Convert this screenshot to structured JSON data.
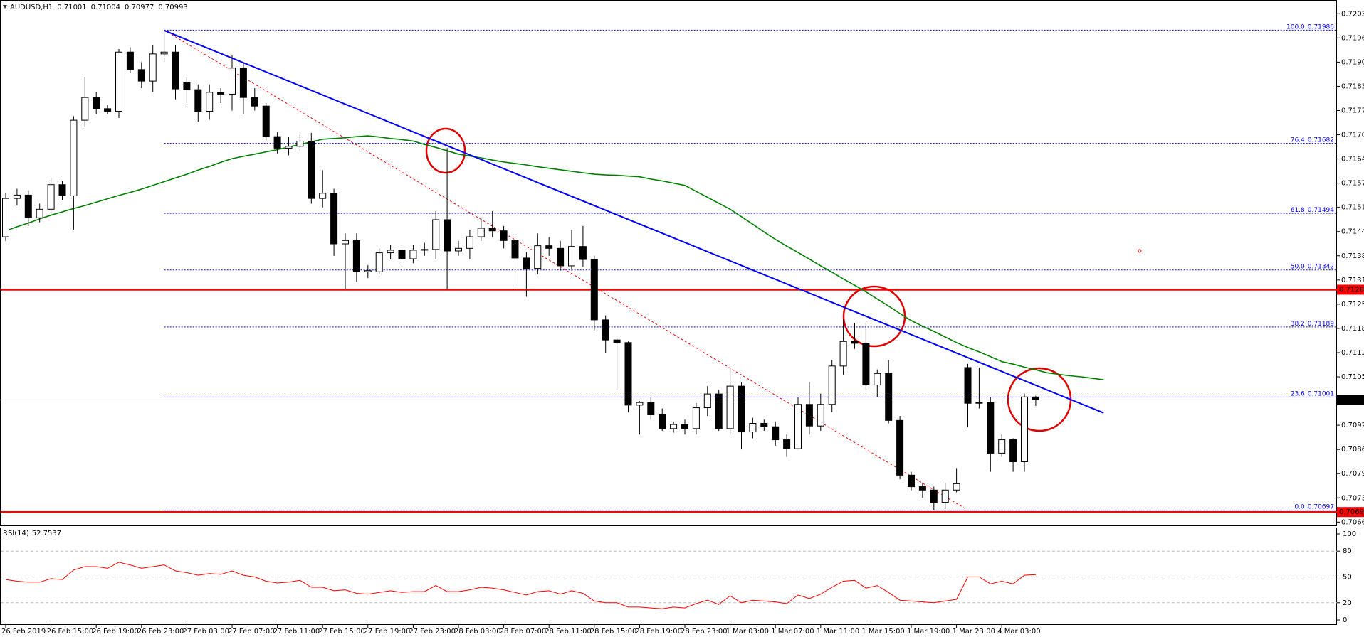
{
  "chart_data": {
    "type": "candlestick",
    "title": "AUDUSD,H1",
    "categories": [
      "26 Feb 2019",
      null,
      null,
      null,
      "26 Feb 15:00",
      null,
      null,
      null,
      "26 Feb 19:00",
      null,
      null,
      null,
      "26 Feb 23:00",
      null,
      null,
      null,
      "27 Feb 03:00",
      null,
      null,
      null,
      "27 Feb 07:00",
      null,
      null,
      null,
      "27 Feb 11:00",
      null,
      null,
      null,
      "27 Feb 15:00",
      null,
      null,
      null,
      "27 Feb 19:00",
      null,
      null,
      null,
      "27 Feb 23:00",
      null,
      null,
      null,
      "28 Feb 03:00",
      null,
      null,
      null,
      "28 Feb 07:00",
      null,
      null,
      null,
      "28 Feb 11:00",
      null,
      null,
      null,
      "28 Feb 15:00",
      null,
      null,
      null,
      "28 Feb 19:00",
      null,
      null,
      null,
      "28 Feb 23:00",
      null,
      null,
      null,
      "1 Mar 03:00",
      null,
      null,
      null,
      "1 Mar 07:00",
      null,
      null,
      null,
      "1 Mar 11:00",
      null,
      null,
      null,
      "1 Mar 15:00",
      null,
      null,
      null,
      "1 Mar 19:00",
      null,
      null,
      null,
      "1 Mar 23:00",
      null,
      null,
      null,
      "4 Mar 03:00",
      null,
      null,
      null
    ],
    "open": [
      0.71431,
      0.71534,
      0.71543,
      0.71482,
      0.71505,
      0.71571,
      0.71541,
      0.71744,
      0.71805,
      0.71775,
      0.71768,
      0.71927,
      0.7188,
      0.71849,
      0.71922,
      0.71927,
      0.71845,
      0.71826,
      0.71768,
      0.71819,
      0.71814,
      0.71884,
      0.71805,
      0.71782,
      0.717,
      0.71669,
      0.71674,
      0.71688,
      0.71534,
      0.71548,
      0.71412,
      0.71421,
      0.71337,
      0.71337,
      0.71388,
      0.71395,
      0.71372,
      0.71395,
      0.71397,
      0.71477,
      0.71393,
      0.714,
      0.71431,
      0.71454,
      0.71447,
      0.71421,
      0.71374,
      0.71346,
      0.71407,
      0.714,
      0.71353,
      0.71405,
      0.7137,
      0.71208,
      0.71154,
      0.71147,
      0.70979,
      0.70986,
      0.70953,
      0.70916,
      0.70927,
      0.70916,
      0.70972,
      0.71009,
      0.70916,
      0.7103,
      0.70907,
      0.7093,
      0.70921,
      0.70886,
      0.70862,
      0.70981,
      0.70923,
      0.70981,
      0.71084,
      0.7115,
      0.71145,
      0.71033,
      0.71064,
      0.70938,
      0.70791,
      0.7076,
      0.70751,
      0.70718,
      0.70751,
      0.7108,
      0.70984,
      0.70986,
      0.7085,
      0.70886,
      0.70827,
      0.71001
    ],
    "high": [
      0.71548,
      0.7156,
      0.71556,
      0.7152,
      0.7159,
      0.7158,
      0.71755,
      0.7186,
      0.7182,
      0.71785,
      0.71935,
      0.7194,
      0.719,
      0.71945,
      0.71985,
      0.71945,
      0.7186,
      0.7184,
      0.7184,
      0.7183,
      0.7192,
      0.719,
      0.7183,
      0.7179,
      0.71712,
      0.717,
      0.71705,
      0.7171,
      0.7161,
      0.7156,
      0.7144,
      0.7144,
      0.71355,
      0.714,
      0.7141,
      0.71405,
      0.7141,
      0.71415,
      0.715,
      0.71669,
      0.7142,
      0.7145,
      0.7148,
      0.715,
      0.7146,
      0.7143,
      0.7139,
      0.7144,
      0.7143,
      0.7142,
      0.7145,
      0.7146,
      0.7138,
      0.7122,
      0.7116,
      0.7115,
      0.7099,
      0.71,
      0.7097,
      0.70935,
      0.7094,
      0.70985,
      0.7103,
      0.7102,
      0.7108,
      0.7104,
      0.70945,
      0.7094,
      0.70935,
      0.709,
      0.71,
      0.7104,
      0.7101,
      0.711,
      0.7121,
      0.712,
      0.712,
      0.71075,
      0.711,
      0.7095,
      0.708,
      0.7077,
      0.7076,
      0.7077,
      0.7081,
      0.7109,
      0.7108,
      0.71,
      0.709,
      0.7089,
      0.7101,
      0.71004
    ],
    "low": [
      0.7142,
      0.71515,
      0.7146,
      0.7147,
      0.71495,
      0.7153,
      0.7145,
      0.71725,
      0.7176,
      0.7176,
      0.7175,
      0.7187,
      0.7183,
      0.7182,
      0.719,
      0.718,
      0.7179,
      0.7174,
      0.71745,
      0.7179,
      0.7177,
      0.7176,
      0.7177,
      0.7169,
      0.71655,
      0.7165,
      0.7166,
      0.7152,
      0.7151,
      0.7138,
      0.7129,
      0.7131,
      0.7132,
      0.7133,
      0.7137,
      0.7136,
      0.7136,
      0.7138,
      0.7137,
      0.7129,
      0.7138,
      0.7137,
      0.7142,
      0.7143,
      0.714,
      0.713,
      0.7127,
      0.7133,
      0.7138,
      0.7134,
      0.7134,
      0.7135,
      0.7118,
      0.7112,
      0.7102,
      0.7096,
      0.709,
      0.7094,
      0.7091,
      0.70905,
      0.709,
      0.709,
      0.7095,
      0.7091,
      0.709,
      0.7086,
      0.7089,
      0.7091,
      0.7087,
      0.7084,
      0.7086,
      0.709,
      0.7091,
      0.7096,
      0.7106,
      0.7113,
      0.7102,
      0.71,
      0.7093,
      0.7078,
      0.7075,
      0.7073,
      0.70697,
      0.707,
      0.70745,
      0.7092,
      0.7097,
      0.708,
      0.7084,
      0.708,
      0.708,
      0.70977
    ],
    "close": [
      0.71534,
      0.71543,
      0.71482,
      0.71505,
      0.71571,
      0.71541,
      0.71744,
      0.71805,
      0.71775,
      0.71768,
      0.71927,
      0.7188,
      0.71849,
      0.71922,
      0.71927,
      0.71828,
      0.71826,
      0.71768,
      0.71819,
      0.71814,
      0.71884,
      0.71805,
      0.71782,
      0.717,
      0.71669,
      0.71674,
      0.71688,
      0.71534,
      0.71548,
      0.71412,
      0.71421,
      0.71337,
      0.7134,
      0.71388,
      0.71395,
      0.71372,
      0.71395,
      0.71397,
      0.71477,
      0.71393,
      0.714,
      0.71431,
      0.71454,
      0.71447,
      0.71421,
      0.71374,
      0.71346,
      0.71407,
      0.714,
      0.71353,
      0.71405,
      0.7137,
      0.71208,
      0.71154,
      0.71147,
      0.70979,
      0.70986,
      0.70953,
      0.70916,
      0.70927,
      0.70916,
      0.70972,
      0.71009,
      0.70916,
      0.7103,
      0.70907,
      0.7093,
      0.70921,
      0.70886,
      0.70862,
      0.70981,
      0.70923,
      0.70981,
      0.71084,
      0.7115,
      0.71145,
      0.71033,
      0.71064,
      0.70938,
      0.70791,
      0.7076,
      0.70751,
      0.70718,
      0.70751,
      0.70768,
      0.70984,
      0.70986,
      0.7085,
      0.70886,
      0.70827,
      0.71001,
      0.70993
    ],
    "ylim": [
      0.70658,
      0.72063
    ],
    "yticks": [
      {
        "value": 0.7203,
        "label": "0.72030"
      },
      0.71965,
      {
        "value": 0.719,
        "label": "0.71900"
      },
      0.71835,
      {
        "value": 0.7177,
        "label": "0.71770"
      },
      0.71705,
      {
        "value": 0.7164,
        "label": "0.71640"
      },
      0.71575,
      {
        "value": 0.7151,
        "label": "0.71510"
      },
      0.71445,
      {
        "value": 0.7138,
        "label": "0.71380"
      },
      0.71315,
      {
        "value": 0.7125,
        "label": "0.71250"
      },
      0.71185,
      {
        "value": 0.7112,
        "label": "0.71120"
      },
      0.71055,
      0.70925,
      {
        "value": 0.7086,
        "label": "0.70860"
      },
      0.70795,
      {
        "value": 0.7073,
        "label": "0.70730"
      },
      0.70665
    ],
    "ma": {
      "color": "#008000",
      "values": [
        0.71447,
        0.71458,
        0.71468,
        0.71479,
        0.71489,
        0.71498,
        0.71507,
        0.71515,
        0.71524,
        0.71533,
        0.71542,
        0.7155,
        0.71559,
        0.71569,
        0.71579,
        0.71589,
        0.71599,
        0.7161,
        0.7162,
        0.71631,
        0.71641,
        0.71647,
        0.71653,
        0.71659,
        0.71665,
        0.71672,
        0.71679,
        0.71686,
        0.71693,
        0.71695,
        0.71697,
        0.717,
        0.71702,
        0.71699,
        0.71695,
        0.71692,
        0.71688,
        0.71679,
        0.71671,
        0.71662,
        0.71653,
        0.71648,
        0.71643,
        0.71637,
        0.71632,
        0.71628,
        0.71624,
        0.71619,
        0.71615,
        0.71611,
        0.71607,
        0.71603,
        0.71599,
        0.71597,
        0.71596,
        0.71594,
        0.71592,
        0.71586,
        0.71581,
        0.71575,
        0.71569,
        0.71553,
        0.71537,
        0.71521,
        0.71505,
        0.71485,
        0.71465,
        0.71444,
        0.71424,
        0.71406,
        0.71389,
        0.71371,
        0.71353,
        0.71336,
        0.71318,
        0.71301,
        0.71283,
        0.71264,
        0.71245,
        0.71225,
        0.71206,
        0.71191,
        0.71177,
        0.71162,
        0.71147,
        0.71134,
        0.71122,
        0.71109,
        0.71096,
        0.71089,
        0.71081,
        0.71074,
        0.71066,
        0.71062,
        0.71058,
        0.71055,
        0.71051,
        0.71047
      ]
    },
    "trendline": {
      "color": "#0000ff",
      "start": [
        14,
        0.71985
      ],
      "end": [
        97,
        0.70958
      ]
    },
    "fib": {
      "start_index": 14,
      "end_index": 85,
      "color": "#0000ff",
      "diagonal_color": "#ff0000",
      "levels": [
        {
          "level": "100.0",
          "price": 0.71986
        },
        {
          "level": "76.4",
          "price": 0.71682
        },
        {
          "level": "61.8",
          "price": 0.71494
        },
        {
          "level": "50.0",
          "price": 0.71342
        },
        {
          "level": "38.2",
          "price": 0.71189
        },
        {
          "level": "23.6",
          "price": 0.71001
        },
        {
          "level": "0.0",
          "price": 0.70697
        }
      ]
    },
    "hlines": [
      {
        "price": 0.71289,
        "color": "#ff0000"
      },
      {
        "price": 0.70692,
        "color": "#ff0000"
      }
    ],
    "rsi": {
      "name": "RSI(14)",
      "color": "#ff0000",
      "ylim": [
        0,
        100
      ],
      "yticks": [
        0,
        20,
        50,
        80,
        100
      ],
      "levels": [
        20,
        50,
        80
      ],
      "values": [
        47,
        45,
        44,
        44,
        48,
        47,
        58,
        62,
        62,
        60,
        67,
        64,
        60,
        62,
        64,
        57,
        55,
        52,
        54,
        53,
        57,
        52,
        50,
        45,
        43,
        44,
        46,
        38,
        38,
        34,
        35,
        31,
        30,
        32,
        34,
        32,
        33,
        33,
        40,
        33,
        33,
        35,
        38,
        37,
        35,
        32,
        29,
        33,
        34,
        30,
        34,
        31,
        22,
        20,
        20,
        15,
        15,
        14,
        13,
        15,
        14,
        19,
        23,
        18,
        28,
        20,
        23,
        22,
        21,
        19,
        29,
        25,
        30,
        38,
        45,
        46,
        37,
        40,
        32,
        23,
        22,
        21,
        20,
        22,
        24,
        50,
        50,
        42,
        45,
        42,
        52,
        52.7537
      ]
    }
  }
}
